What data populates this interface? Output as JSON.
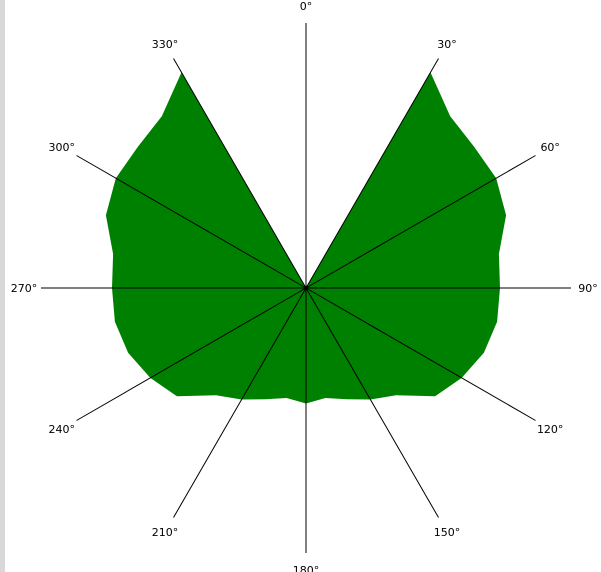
{
  "chart_data": {
    "type": "polar-area",
    "angle_labels": [
      "0°",
      "30°",
      "60°",
      "90°",
      "120°",
      "150°",
      "180°",
      "210°",
      "240°",
      "270°",
      "300°",
      "330°"
    ],
    "angle_ticks": [
      0,
      30,
      60,
      90,
      120,
      150,
      180,
      210,
      240,
      270,
      300,
      330
    ],
    "r_max": 235,
    "series": [
      {
        "color": "#008000",
        "points": [
          {
            "theta": 0,
            "r": 0
          },
          {
            "theta": 30,
            "r": 263
          },
          {
            "theta": 40,
            "r": 237
          },
          {
            "theta": 50,
            "r": 232
          },
          {
            "theta": 60,
            "r": 232
          },
          {
            "theta": 70,
            "r": 225
          },
          {
            "theta": 80,
            "r": 207
          },
          {
            "theta": 90,
            "r": 205
          },
          {
            "theta": 100,
            "r": 205
          },
          {
            "theta": 110,
            "r": 200
          },
          {
            "theta": 120,
            "r": 190
          },
          {
            "theta": 130,
            "r": 178
          },
          {
            "theta": 140,
            "r": 148
          },
          {
            "theta": 150,
            "r": 136
          },
          {
            "theta": 160,
            "r": 125
          },
          {
            "theta": 170,
            "r": 118
          },
          {
            "theta": 180,
            "r": 122
          },
          {
            "theta": 190,
            "r": 118
          },
          {
            "theta": 200,
            "r": 125
          },
          {
            "theta": 210,
            "r": 136
          },
          {
            "theta": 220,
            "r": 148
          },
          {
            "theta": 230,
            "r": 178
          },
          {
            "theta": 240,
            "r": 190
          },
          {
            "theta": 250,
            "r": 200
          },
          {
            "theta": 260,
            "r": 205
          },
          {
            "theta": 270,
            "r": 205
          },
          {
            "theta": 280,
            "r": 207
          },
          {
            "theta": 290,
            "r": 225
          },
          {
            "theta": 300,
            "r": 232
          },
          {
            "theta": 310,
            "r": 232
          },
          {
            "theta": 320,
            "r": 237
          },
          {
            "theta": 330,
            "r": 263
          }
        ]
      }
    ],
    "grid": false,
    "legend": "none"
  }
}
